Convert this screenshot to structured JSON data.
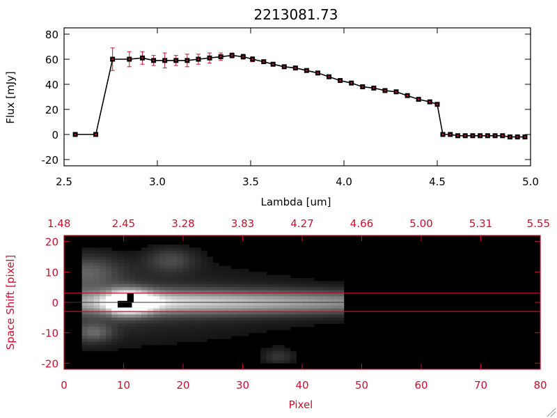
{
  "chart_data": [
    {
      "type": "line",
      "title": "2213081.73",
      "xlabel": "Lambda [um]",
      "ylabel": "Flux [mJy]",
      "xlim": [
        2.5,
        5.0
      ],
      "ylim": [
        -25,
        85
      ],
      "xticks": [
        "2.5",
        "3.0",
        "3.5",
        "4.0",
        "4.5",
        "5.0"
      ],
      "yticks": [
        "-20",
        "0",
        "20",
        "40",
        "60",
        "80"
      ],
      "series": [
        {
          "x": [
            2.56,
            2.67,
            2.76,
            2.85,
            2.92,
            2.98,
            3.04,
            3.1,
            3.16,
            3.22,
            3.28,
            3.34,
            3.4,
            3.46,
            3.51,
            3.57,
            3.62,
            3.68,
            3.74,
            3.8,
            3.86,
            3.92,
            3.98,
            4.04,
            4.1,
            4.16,
            4.22,
            4.28,
            4.34,
            4.4,
            4.46,
            4.5,
            4.53,
            4.57,
            4.61,
            4.65,
            4.69,
            4.73,
            4.77,
            4.81,
            4.85,
            4.89,
            4.93,
            4.97
          ],
          "y": [
            0,
            0,
            60,
            60,
            61,
            59,
            59,
            59,
            59,
            60,
            61,
            62,
            63,
            62,
            60,
            58,
            56,
            54,
            53,
            51,
            49,
            46,
            43,
            41,
            38,
            37,
            35,
            34,
            31,
            28,
            26,
            24,
            0,
            0,
            -1,
            -1,
            -1,
            -1,
            -1,
            -1,
            -1,
            -2,
            -2,
            -2
          ],
          "err": [
            0,
            0,
            9,
            6,
            5,
            4,
            6,
            4,
            5,
            4,
            4,
            3,
            2,
            2,
            2,
            1,
            1,
            1,
            1,
            1,
            1,
            1,
            1,
            1,
            1,
            1,
            1,
            1,
            1,
            1,
            1,
            1,
            1,
            1,
            1,
            1,
            1,
            1,
            1,
            1,
            1,
            1,
            1,
            1
          ]
        }
      ],
      "colors": {
        "line": "#000000",
        "marker": "#000000",
        "error": "#c8102e"
      }
    },
    {
      "type": "heatmap",
      "xlabel": "Pixel",
      "ylabel": "Space Shift [pixel]",
      "xlim": [
        0,
        80
      ],
      "ylim": [
        -22,
        22
      ],
      "xticks": [
        "0",
        "10",
        "20",
        "30",
        "40",
        "50",
        "60",
        "70",
        "80"
      ],
      "yticks": [
        "-20",
        "-10",
        "0",
        "10",
        "20"
      ],
      "top_ticks": [
        "1.48",
        "2.45",
        "3.28",
        "3.83",
        "4.27",
        "4.66",
        "5.00",
        "5.31",
        "5.55"
      ],
      "extraction_lines": [
        3,
        -3
      ],
      "colors": {
        "axis": "#c8102e"
      }
    }
  ]
}
